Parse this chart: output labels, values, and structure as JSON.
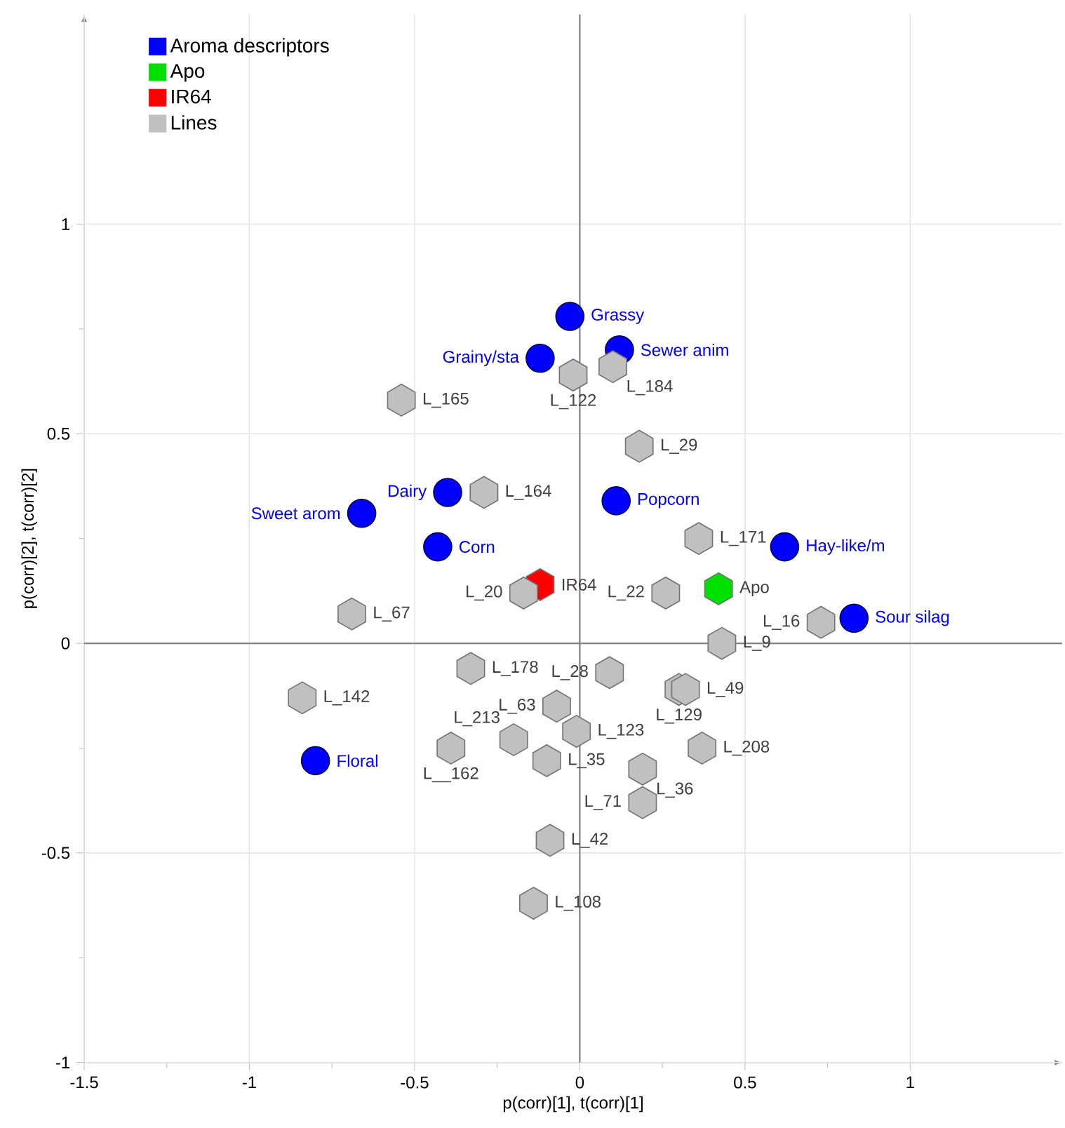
{
  "chart_data": {
    "type": "scatter",
    "xlabel": "p(corr)[1], t(corr)[1]",
    "ylabel": "p(corr)[2], t(corr)[2]",
    "xlim": [
      -1.5,
      1.46
    ],
    "ylim": [
      -1,
      1.5
    ],
    "xticks": [
      -1.5,
      -1,
      -0.5,
      0,
      0.5,
      1
    ],
    "yticks": [
      -1,
      -0.5,
      0,
      0.5,
      1
    ],
    "grid": true,
    "legend": "top left",
    "series": [
      {
        "name": "Aroma descriptors",
        "color": "#0000ff",
        "marker": "circle",
        "x": [
          -0.03,
          -0.12,
          0.12,
          -0.4,
          -0.66,
          -0.43,
          0.11,
          0.62,
          0.83,
          -0.8
        ],
        "values": [
          0.78,
          0.68,
          0.7,
          0.36,
          0.31,
          0.23,
          0.34,
          0.23,
          0.06,
          -0.28
        ]
      },
      {
        "name": "Apo",
        "color": "#00e000",
        "x": [
          0.42
        ],
        "values": [
          0.13
        ]
      },
      {
        "name": "IR64",
        "color": "#ff0000",
        "x": [
          -0.12
        ],
        "values": [
          0.14
        ]
      },
      {
        "name": "Lines",
        "color": "#c0c0c0",
        "x": [
          -0.54,
          -0.02,
          0.1,
          0.18,
          -0.29,
          0.36,
          -0.17,
          0.26,
          -0.69,
          0.43,
          0.73,
          0.09,
          -0.33,
          -0.84,
          -0.07,
          0.3,
          0.32,
          -0.01,
          0.37,
          -0.39,
          -0.2,
          -0.1,
          0.19,
          0.19,
          -0.09,
          -0.14
        ],
        "values": [
          0.58,
          0.64,
          0.66,
          0.47,
          0.36,
          0.25,
          0.12,
          0.12,
          0.07,
          0.0,
          0.05,
          -0.07,
          -0.06,
          -0.13,
          -0.15,
          -0.11,
          -0.11,
          -0.21,
          -0.25,
          -0.25,
          -0.23,
          -0.28,
          -0.3,
          -0.38,
          -0.47,
          -0.62
        ]
      }
    ],
    "annotations": [
      {
        "text": "Grassy",
        "x": -0.03,
        "y": 0.78
      },
      {
        "text": "Grainy/sta",
        "x": -0.12,
        "y": 0.68
      },
      {
        "text": "Sewer anim",
        "x": 0.12,
        "y": 0.7
      },
      {
        "text": "Dairy",
        "x": -0.4,
        "y": 0.36
      },
      {
        "text": "Sweet arom",
        "x": -0.66,
        "y": 0.31
      },
      {
        "text": "Corn",
        "x": -0.43,
        "y": 0.23
      },
      {
        "text": "Popcorn",
        "x": 0.11,
        "y": 0.34
      },
      {
        "text": "Hay-like/m",
        "x": 0.62,
        "y": 0.23
      },
      {
        "text": "Sour silag",
        "x": 0.83,
        "y": 0.06
      },
      {
        "text": "Floral",
        "x": -0.8,
        "y": -0.28
      },
      {
        "text": "Apo",
        "x": 0.42,
        "y": 0.13
      },
      {
        "text": "IR64",
        "x": -0.12,
        "y": 0.14
      },
      {
        "text": "L_165",
        "x": -0.54,
        "y": 0.58
      },
      {
        "text": "L_122",
        "x": -0.02,
        "y": 0.64
      },
      {
        "text": "L_184",
        "x": 0.1,
        "y": 0.66
      },
      {
        "text": "L_29",
        "x": 0.18,
        "y": 0.47
      },
      {
        "text": "L_164",
        "x": -0.29,
        "y": 0.36
      },
      {
        "text": "L_171",
        "x": 0.36,
        "y": 0.25
      },
      {
        "text": "L_20",
        "x": -0.17,
        "y": 0.12
      },
      {
        "text": "L_22",
        "x": 0.26,
        "y": 0.12
      },
      {
        "text": "L_67",
        "x": -0.69,
        "y": 0.07
      },
      {
        "text": "L_9",
        "x": 0.43,
        "y": 0.0
      },
      {
        "text": "L_16",
        "x": 0.73,
        "y": 0.05
      },
      {
        "text": "L_28",
        "x": 0.09,
        "y": -0.07
      },
      {
        "text": "L_178",
        "x": -0.33,
        "y": -0.06
      },
      {
        "text": "L_142",
        "x": -0.84,
        "y": -0.13
      },
      {
        "text": "L_63",
        "x": -0.07,
        "y": -0.15
      },
      {
        "text": "L_129",
        "x": 0.3,
        "y": -0.11
      },
      {
        "text": "L_49",
        "x": 0.32,
        "y": -0.11
      },
      {
        "text": "L_123",
        "x": -0.01,
        "y": -0.21
      },
      {
        "text": "L_208",
        "x": 0.37,
        "y": -0.25
      },
      {
        "text": "L__162",
        "x": -0.39,
        "y": -0.25
      },
      {
        "text": "L_213",
        "x": -0.2,
        "y": -0.23
      },
      {
        "text": "L_35",
        "x": -0.1,
        "y": -0.28
      },
      {
        "text": "L_36",
        "x": 0.19,
        "y": -0.3
      },
      {
        "text": "L_71",
        "x": 0.19,
        "y": -0.38
      },
      {
        "text": "L_42",
        "x": -0.09,
        "y": -0.47
      },
      {
        "text": "L_108",
        "x": -0.14,
        "y": -0.62
      }
    ]
  }
}
